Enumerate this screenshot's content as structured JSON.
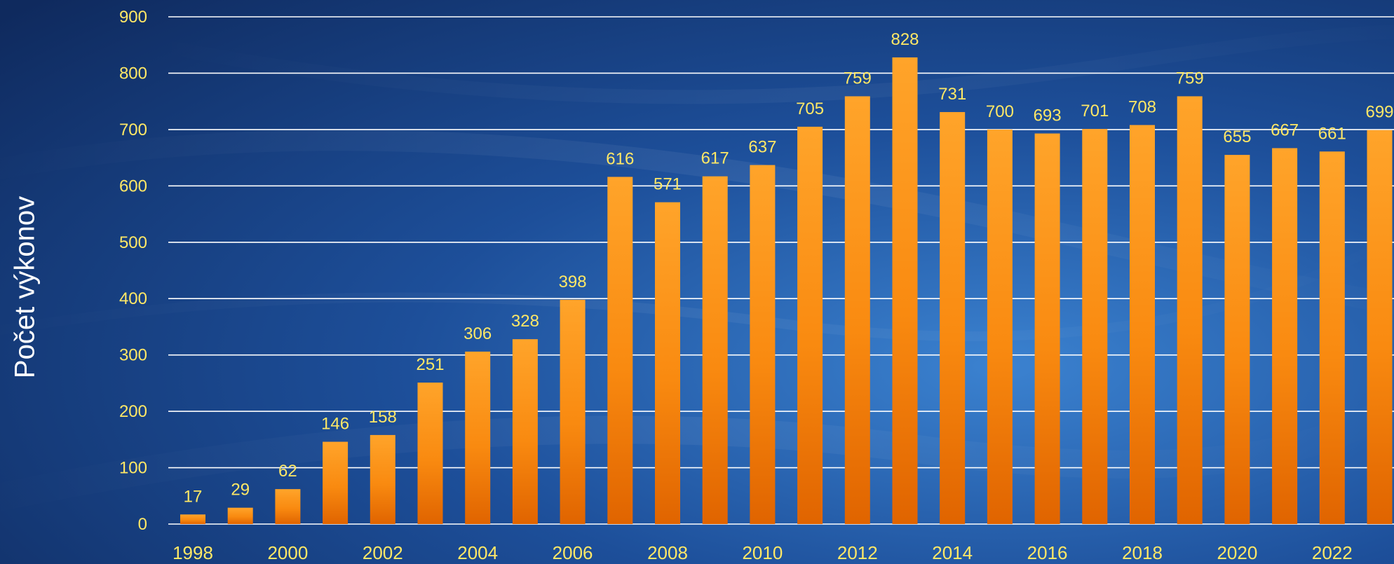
{
  "chart_data": {
    "type": "bar",
    "ylabel": "Počet výkonov",
    "ylim": [
      0,
      900
    ],
    "yticks": [
      0,
      100,
      200,
      300,
      400,
      500,
      600,
      700,
      800,
      900
    ],
    "categories": [
      "1998",
      "1999",
      "2000",
      "2001",
      "2002",
      "2003",
      "2004",
      "2005",
      "2006",
      "2007",
      "2008",
      "2009",
      "2010",
      "2011",
      "2012",
      "2013",
      "2014",
      "2015",
      "2016",
      "2017",
      "2018",
      "2019",
      "2020",
      "2021",
      "2022",
      "2023"
    ],
    "x_tick_labels": [
      "1998",
      "2000",
      "2002",
      "2004",
      "2006",
      "2008",
      "2010",
      "2012",
      "2014",
      "2016",
      "2018",
      "2020",
      "2022"
    ],
    "values": [
      17,
      29,
      62,
      146,
      158,
      251,
      306,
      328,
      398,
      616,
      571,
      617,
      637,
      705,
      759,
      828,
      731,
      700,
      693,
      701,
      708,
      759,
      655,
      667,
      661,
      699
    ],
    "data_labels": [
      "17",
      "29",
      "62",
      "146",
      "158",
      "251",
      "306",
      "328",
      "398",
      "616",
      "571",
      "617",
      "637",
      "705",
      "759",
      "828",
      "731",
      "700",
      "693",
      "701",
      "708",
      "759",
      "655",
      "667",
      "661",
      "699"
    ],
    "grid": true,
    "legend": "none"
  },
  "colors": {
    "bar_top": "#ff9a1f",
    "bar_bottom": "#e56a00",
    "data_label": "#ffe866",
    "tick_label": "#ffe866",
    "grid": "#ffffff",
    "axis_title": "#ffffff",
    "bg_dark": "#0f2a5e",
    "bg_light": "#2d6fc0"
  }
}
